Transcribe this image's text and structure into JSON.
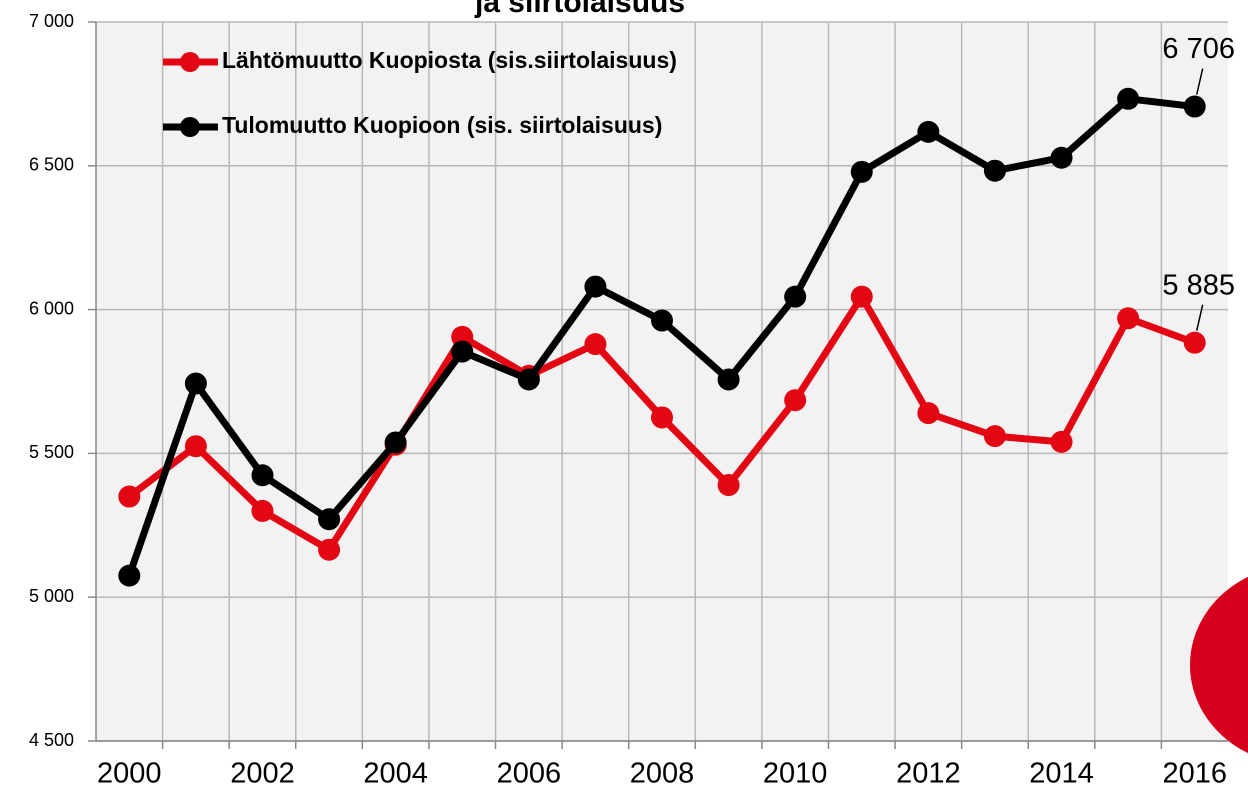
{
  "chart_data": {
    "type": "line",
    "title": "ja siirtolaisuus",
    "categories": [
      "2000",
      null,
      "2002",
      null,
      "2004",
      null,
      "2006",
      null,
      "2008",
      null,
      "2010",
      null,
      "2012",
      null,
      "2014",
      null,
      "2016"
    ],
    "series": [
      {
        "name": "Lähtömuutto Kuopiosta (sis.siirtolaisuus)",
        "color": "#e30613",
        "values": [
          5350,
          5525,
          5300,
          5165,
          5530,
          5905,
          5770,
          5880,
          5625,
          5390,
          5685,
          6045,
          5640,
          5560,
          5540,
          5970,
          5885
        ],
        "value_labels": [
          null,
          null,
          null,
          null,
          null,
          null,
          null,
          null,
          null,
          null,
          null,
          null,
          null,
          null,
          null,
          null,
          "5 885"
        ]
      },
      {
        "name": "Tulomuutto Kuopioon (sis. siirtolaisuus)",
        "color": "#000000",
        "values": [
          5075,
          5743,
          5424,
          5271,
          5538,
          5854,
          5757,
          6080,
          5962,
          5757,
          6045,
          6479,
          6618,
          6483,
          6528,
          6733,
          6706
        ],
        "value_labels": [
          null,
          null,
          null,
          null,
          null,
          null,
          null,
          null,
          null,
          null,
          null,
          null,
          null,
          null,
          null,
          null,
          "6 706"
        ]
      }
    ],
    "ylim": [
      4500,
      7000
    ],
    "yticks": [
      {
        "value": 4500,
        "label": "4 500"
      },
      {
        "value": 5000,
        "label": "5 000"
      },
      {
        "value": 5500,
        "label": "5 500"
      },
      {
        "value": 6000,
        "label": "6 000"
      },
      {
        "value": 6500,
        "label": "6 500"
      },
      {
        "value": 7000,
        "label": "7 000"
      }
    ],
    "grid": true,
    "legend": "upper left"
  }
}
